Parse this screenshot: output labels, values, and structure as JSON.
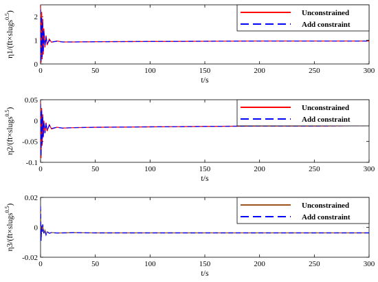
{
  "chart_data": [
    {
      "type": "line",
      "xlabel": "t/s",
      "ylabel": "η1/(ft×slugs",
      "ylabel_sup": "0.5",
      "ylabel_close": ")",
      "xlim": [
        0,
        300
      ],
      "ylim": [
        0,
        2.5
      ],
      "xticks": [
        0,
        50,
        100,
        150,
        200,
        250,
        300
      ],
      "yticks": [
        0,
        1,
        2
      ],
      "ytick_labels": [
        "0",
        "1",
        "2"
      ],
      "legend": "top-right",
      "series": [
        {
          "name": "Unconstrained",
          "color": "#ff0000",
          "style": "solid",
          "x": [
            0,
            0.5,
            1,
            1.5,
            2,
            2.5,
            3,
            4,
            5,
            6,
            8,
            10,
            15,
            20,
            30,
            50,
            100,
            150,
            200,
            250,
            300
          ],
          "y": [
            2.5,
            0.05,
            2.2,
            0.2,
            1.9,
            0.4,
            1.5,
            0.7,
            1.2,
            0.8,
            1.05,
            0.92,
            0.97,
            0.93,
            0.93,
            0.94,
            0.95,
            0.96,
            0.97,
            0.97,
            0.97
          ]
        },
        {
          "name": "Add constraint",
          "color": "#0000ff",
          "style": "dashed",
          "x": [
            0,
            0.5,
            1,
            1.5,
            2,
            2.5,
            3,
            4,
            5,
            6,
            8,
            10,
            15,
            20,
            30,
            50,
            100,
            150,
            200,
            250,
            300
          ],
          "y": [
            2.3,
            0.1,
            2.0,
            0.3,
            1.8,
            0.5,
            1.4,
            0.75,
            1.15,
            0.85,
            1.0,
            0.93,
            0.96,
            0.93,
            0.93,
            0.94,
            0.95,
            0.96,
            0.97,
            0.97,
            0.97
          ]
        }
      ]
    },
    {
      "type": "line",
      "xlabel": "t/s",
      "ylabel": "η2/(ft×slugs",
      "ylabel_sup": "0.5",
      "ylabel_close": ")",
      "xlim": [
        0,
        300
      ],
      "ylim": [
        -0.1,
        0.05
      ],
      "xticks": [
        0,
        50,
        100,
        150,
        200,
        250,
        300
      ],
      "yticks": [
        -0.1,
        -0.05,
        0,
        0.05
      ],
      "ytick_labels": [
        "-0.1",
        "-0.05",
        "0",
        "0.05"
      ],
      "legend": "top-right",
      "series": [
        {
          "name": "Unconstrained",
          "color": "#ff0000",
          "style": "solid",
          "x": [
            0,
            0.5,
            1,
            1.5,
            2,
            2.5,
            3,
            4,
            5,
            6,
            8,
            10,
            15,
            20,
            30,
            50,
            100,
            150,
            200,
            250,
            300
          ],
          "y": [
            0.045,
            -0.09,
            0.03,
            -0.06,
            0.015,
            -0.04,
            0.0,
            -0.03,
            -0.005,
            -0.025,
            -0.01,
            -0.02,
            -0.016,
            -0.018,
            -0.017,
            -0.016,
            -0.015,
            -0.014,
            -0.013,
            -0.013,
            -0.012
          ]
        },
        {
          "name": "Add constraint",
          "color": "#0000ff",
          "style": "dashed",
          "x": [
            0,
            0.5,
            1,
            1.5,
            2,
            2.5,
            3,
            4,
            5,
            6,
            8,
            10,
            15,
            20,
            30,
            50,
            100,
            150,
            200,
            250,
            300
          ],
          "y": [
            0.04,
            -0.085,
            0.025,
            -0.055,
            0.01,
            -0.04,
            -0.002,
            -0.03,
            -0.006,
            -0.024,
            -0.011,
            -0.019,
            -0.016,
            -0.018,
            -0.017,
            -0.016,
            -0.015,
            -0.014,
            -0.013,
            -0.013,
            -0.012
          ]
        }
      ]
    },
    {
      "type": "line",
      "xlabel": "t/s",
      "ylabel": "η3/(ft×slugs",
      "ylabel_sup": "0.5",
      "ylabel_close": ")",
      "xlim": [
        0,
        300
      ],
      "ylim": [
        -0.02,
        0.02
      ],
      "xticks": [
        0,
        50,
        100,
        150,
        200,
        250,
        300
      ],
      "yticks": [
        -0.02,
        0,
        0.02
      ],
      "ytick_labels": [
        "-0.02",
        "0",
        "0.02"
      ],
      "legend": "top-right",
      "series": [
        {
          "name": "Unconstrained",
          "color": "#a0521c",
          "style": "solid",
          "x": [
            0,
            0.5,
            1,
            1.5,
            2,
            3,
            4,
            5,
            6,
            8,
            10,
            15,
            20,
            30,
            50,
            100,
            150,
            200,
            250,
            300
          ],
          "y": [
            0.012,
            -0.008,
            0.0,
            -0.003,
            0.001,
            -0.004,
            -0.002,
            -0.005,
            -0.003,
            -0.004,
            -0.0035,
            -0.0038,
            -0.0037,
            -0.0036,
            -0.0037,
            -0.0037,
            -0.0037,
            -0.0037,
            -0.0037,
            -0.0037
          ]
        },
        {
          "name": "Add constraint",
          "color": "#0000ff",
          "style": "dashed",
          "x": [
            0,
            0.5,
            1,
            1.5,
            2,
            3,
            4,
            5,
            6,
            8,
            10,
            15,
            20,
            30,
            50,
            100,
            150,
            200,
            250,
            300
          ],
          "y": [
            0.014,
            -0.009,
            0.001,
            -0.003,
            0.002,
            -0.004,
            -0.002,
            -0.005,
            -0.003,
            -0.004,
            -0.0035,
            -0.0038,
            -0.0037,
            -0.0036,
            -0.0037,
            -0.0037,
            -0.0037,
            -0.0037,
            -0.0037,
            -0.0037
          ]
        }
      ]
    }
  ]
}
